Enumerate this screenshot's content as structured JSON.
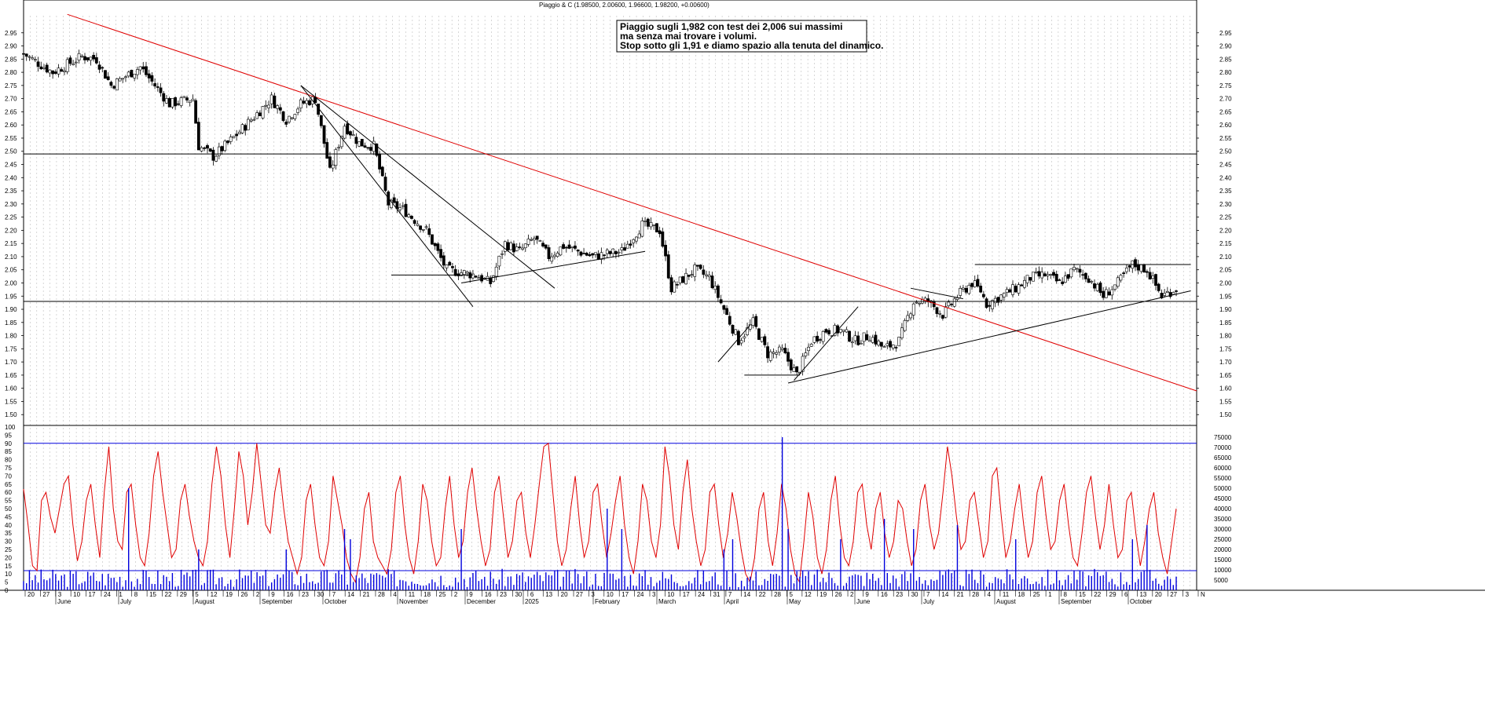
{
  "chart_data": [
    {
      "type": "candlestick",
      "title": "Piaggio & C (1.98500, 2.00600, 1.96600, 1.98200, +0.00600)",
      "annotation": [
        "Piaggio sugli 1,982 con test dei 2,006 sui massimi",
        "ma senza mai trovare i volumi.",
        "Stop sotto gli 1,91 e diamo spazio alla tenuta del dinamico."
      ],
      "ylim": [
        1.45,
        3.0
      ],
      "y_ticks": [
        "1.50",
        "1.55",
        "1.60",
        "1.65",
        "1.70",
        "1.75",
        "1.80",
        "1.85",
        "1.90",
        "1.95",
        "2.00",
        "2.05",
        "2.10",
        "2.15",
        "2.20",
        "2.25",
        "2.30",
        "2.35",
        "2.40",
        "2.45",
        "2.50",
        "2.55",
        "2.60",
        "2.65",
        "2.70",
        "2.75",
        "2.80",
        "2.85",
        "2.90",
        "2.95"
      ],
      "x_range": [
        0,
        402
      ],
      "close_path": [
        [
          0,
          2.87
        ],
        [
          10,
          2.8
        ],
        [
          20,
          2.86
        ],
        [
          25,
          2.85
        ],
        [
          30,
          2.75
        ],
        [
          40,
          2.82
        ],
        [
          50,
          2.68
        ],
        [
          58,
          2.7
        ],
        [
          60,
          2.52
        ],
        [
          65,
          2.48
        ],
        [
          70,
          2.53
        ],
        [
          78,
          2.62
        ],
        [
          85,
          2.7
        ],
        [
          90,
          2.62
        ],
        [
          95,
          2.68
        ],
        [
          100,
          2.7
        ],
        [
          105,
          2.42
        ],
        [
          110,
          2.6
        ],
        [
          115,
          2.53
        ],
        [
          120,
          2.52
        ],
        [
          125,
          2.3
        ],
        [
          130,
          2.28
        ],
        [
          138,
          2.2
        ],
        [
          145,
          2.05
        ],
        [
          155,
          2.03
        ],
        [
          160,
          2.0
        ],
        [
          165,
          2.15
        ],
        [
          170,
          2.12
        ],
        [
          175,
          2.17
        ],
        [
          180,
          2.1
        ],
        [
          185,
          2.14
        ],
        [
          195,
          2.1
        ],
        [
          205,
          2.12
        ],
        [
          212,
          2.22
        ],
        [
          218,
          2.2
        ],
        [
          222,
          1.98
        ],
        [
          230,
          2.05
        ],
        [
          235,
          2.02
        ],
        [
          240,
          1.9
        ],
        [
          245,
          1.78
        ],
        [
          250,
          1.85
        ],
        [
          255,
          1.73
        ],
        [
          260,
          1.74
        ],
        [
          265,
          1.65
        ],
        [
          270,
          1.78
        ],
        [
          275,
          1.82
        ],
        [
          280,
          1.82
        ],
        [
          285,
          1.78
        ],
        [
          290,
          1.8
        ],
        [
          295,
          1.75
        ],
        [
          300,
          1.78
        ],
        [
          305,
          1.93
        ],
        [
          310,
          1.93
        ],
        [
          315,
          1.88
        ],
        [
          320,
          1.95
        ],
        [
          325,
          2.0
        ],
        [
          328,
          1.97
        ],
        [
          330,
          1.92
        ],
        [
          340,
          1.98
        ],
        [
          345,
          2.02
        ],
        [
          350,
          2.03
        ],
        [
          355,
          2.0
        ],
        [
          360,
          2.05
        ],
        [
          365,
          2.02
        ],
        [
          370,
          1.95
        ],
        [
          375,
          2.0
        ],
        [
          380,
          2.07
        ],
        [
          385,
          2.05
        ],
        [
          390,
          1.95
        ],
        [
          395,
          1.98
        ]
      ],
      "hlines": [
        2.49,
        1.93
      ],
      "trendlines": [
        {
          "color": "#e00000",
          "p1": [
            15,
            3.02
          ],
          "p2": [
            402,
            1.59
          ]
        },
        {
          "color": "#000000",
          "p1": [
            95,
            2.75
          ],
          "p2": [
            154,
            1.91
          ]
        },
        {
          "color": "#000000",
          "p1": [
            95,
            2.75
          ],
          "p2": [
            182,
            1.98
          ]
        },
        {
          "color": "#000000",
          "p1": [
            126,
            2.03
          ],
          "p2": [
            154,
            2.03
          ]
        },
        {
          "color": "#000000",
          "p1": [
            150,
            2.0
          ],
          "p2": [
            213,
            2.12
          ]
        },
        {
          "color": "#000000",
          "p1": [
            238,
            1.7
          ],
          "p2": [
            249,
            1.84
          ]
        },
        {
          "color": "#000000",
          "p1": [
            247,
            1.65
          ],
          "p2": [
            266,
            1.65
          ]
        },
        {
          "color": "#000000",
          "p1": [
            262,
            1.62
          ],
          "p2": [
            400,
            1.97
          ]
        },
        {
          "color": "#000000",
          "p1": [
            264,
            1.63
          ],
          "p2": [
            286,
            1.91
          ]
        },
        {
          "color": "#000000",
          "p1": [
            304,
            1.98
          ],
          "p2": [
            322,
            1.94
          ]
        },
        {
          "color": "#000000",
          "p1": [
            326,
            2.07
          ],
          "p2": [
            400,
            2.07
          ]
        }
      ]
    },
    {
      "type": "line",
      "series": [
        {
          "values": [
            62,
            40,
            15,
            12,
            55,
            60,
            45,
            35,
            50,
            65,
            70,
            40,
            18,
            30,
            55,
            65,
            40,
            20,
            60,
            88,
            50,
            30,
            25,
            60,
            65,
            40,
            20,
            15,
            35,
            70,
            85,
            60,
            40,
            20,
            25,
            55,
            65,
            45,
            30,
            20,
            15,
            30,
            65,
            88,
            70,
            40,
            20,
            50,
            85,
            70,
            40,
            60,
            90,
            65,
            40,
            35,
            60,
            75,
            50,
            30,
            20,
            10,
            20,
            55,
            65,
            40,
            20,
            15,
            30,
            70,
            55,
            40,
            20,
            10,
            5,
            20,
            50,
            60,
            30,
            20,
            15,
            10,
            25,
            60,
            70,
            40,
            20,
            10,
            30,
            65,
            55,
            30,
            15,
            20,
            50,
            70,
            40,
            20,
            30,
            60,
            75,
            50,
            30,
            15,
            25,
            60,
            70,
            45,
            20,
            30,
            55,
            60,
            35,
            20,
            40,
            65,
            88,
            90,
            60,
            30,
            15,
            25,
            50,
            70,
            40,
            20,
            30,
            60,
            65,
            40,
            20,
            35,
            55,
            70,
            40,
            20,
            10,
            30,
            65,
            55,
            30,
            20,
            40,
            88,
            70,
            40,
            25,
            60,
            80,
            50,
            30,
            15,
            25,
            60,
            65,
            40,
            20,
            35,
            60,
            45,
            25,
            10,
            5,
            20,
            50,
            60,
            30,
            15,
            35,
            65,
            50,
            25,
            10,
            5,
            30,
            60,
            45,
            20,
            10,
            25,
            55,
            70,
            40,
            20,
            15,
            30,
            60,
            65,
            40,
            25,
            50,
            60,
            35,
            20,
            30,
            55,
            50,
            30,
            15,
            25,
            55,
            65,
            40,
            25,
            35,
            60,
            88,
            70,
            45,
            25,
            30,
            55,
            60,
            40,
            20,
            30,
            70,
            75,
            45,
            20,
            30,
            50,
            65,
            40,
            20,
            30,
            60,
            70,
            45,
            25,
            30,
            55,
            65,
            40,
            20,
            15,
            35,
            60,
            70,
            45,
            25,
            40,
            65,
            40,
            20,
            25,
            55,
            60,
            35,
            15,
            30,
            50,
            60,
            35,
            20,
            10,
            30,
            50
          ]
        }
      ],
      "hlines": [
        90,
        12
      ],
      "y_ticks_left": [
        "0",
        "5",
        "10",
        "15",
        "20",
        "25",
        "30",
        "35",
        "40",
        "45",
        "50",
        "55",
        "60",
        "65",
        "70",
        "75",
        "80",
        "85",
        "90",
        "95",
        "100"
      ],
      "y_ticks_right": [
        "5000",
        "10000",
        "15000",
        "20000",
        "25000",
        "30000",
        "35000",
        "40000",
        "45000",
        "50000",
        "55000",
        "60000",
        "65000",
        "70000",
        "75000"
      ]
    },
    {
      "type": "bar",
      "ylim": [
        0,
        80000
      ],
      "spikes": [
        [
          36,
          50000
        ],
        [
          60,
          20000
        ],
        [
          90,
          20000
        ],
        [
          110,
          30000
        ],
        [
          112,
          25000
        ],
        [
          150,
          30000
        ],
        [
          200,
          40000
        ],
        [
          205,
          30000
        ],
        [
          240,
          20000
        ],
        [
          243,
          25000
        ],
        [
          260,
          75000
        ],
        [
          262,
          30000
        ],
        [
          280,
          25000
        ],
        [
          295,
          35000
        ],
        [
          305,
          30000
        ],
        [
          320,
          32000
        ],
        [
          340,
          25000
        ],
        [
          380,
          25000
        ],
        [
          385,
          32000
        ]
      ]
    }
  ],
  "x_axis": {
    "day_ticks": [
      "20",
      "27",
      "3",
      "10",
      "17",
      "24",
      "1",
      "8",
      "15",
      "22",
      "29",
      "5",
      "12",
      "19",
      "26",
      "2",
      "9",
      "16",
      "23",
      "30",
      "7",
      "14",
      "21",
      "28",
      "4",
      "11",
      "18",
      "25",
      "2",
      "9",
      "16",
      "23",
      "30",
      "6",
      "13",
      "20",
      "27",
      "3",
      "10",
      "17",
      "24",
      "3",
      "10",
      "17",
      "24",
      "31",
      "7",
      "14",
      "22",
      "28",
      "5",
      "12",
      "19",
      "26",
      "2",
      "9",
      "16",
      "23",
      "30",
      "7",
      "14",
      "21",
      "28",
      "4",
      "11",
      "18",
      "25",
      "1",
      "8",
      "15",
      "22",
      "29",
      "6",
      "13",
      "20",
      "27",
      "3",
      "N"
    ],
    "months": [
      "June",
      "July",
      "August",
      "September",
      "October",
      "November",
      "December",
      "2025",
      "February",
      "March",
      "April",
      "May",
      "June",
      "July",
      "August",
      "September",
      "October"
    ]
  }
}
